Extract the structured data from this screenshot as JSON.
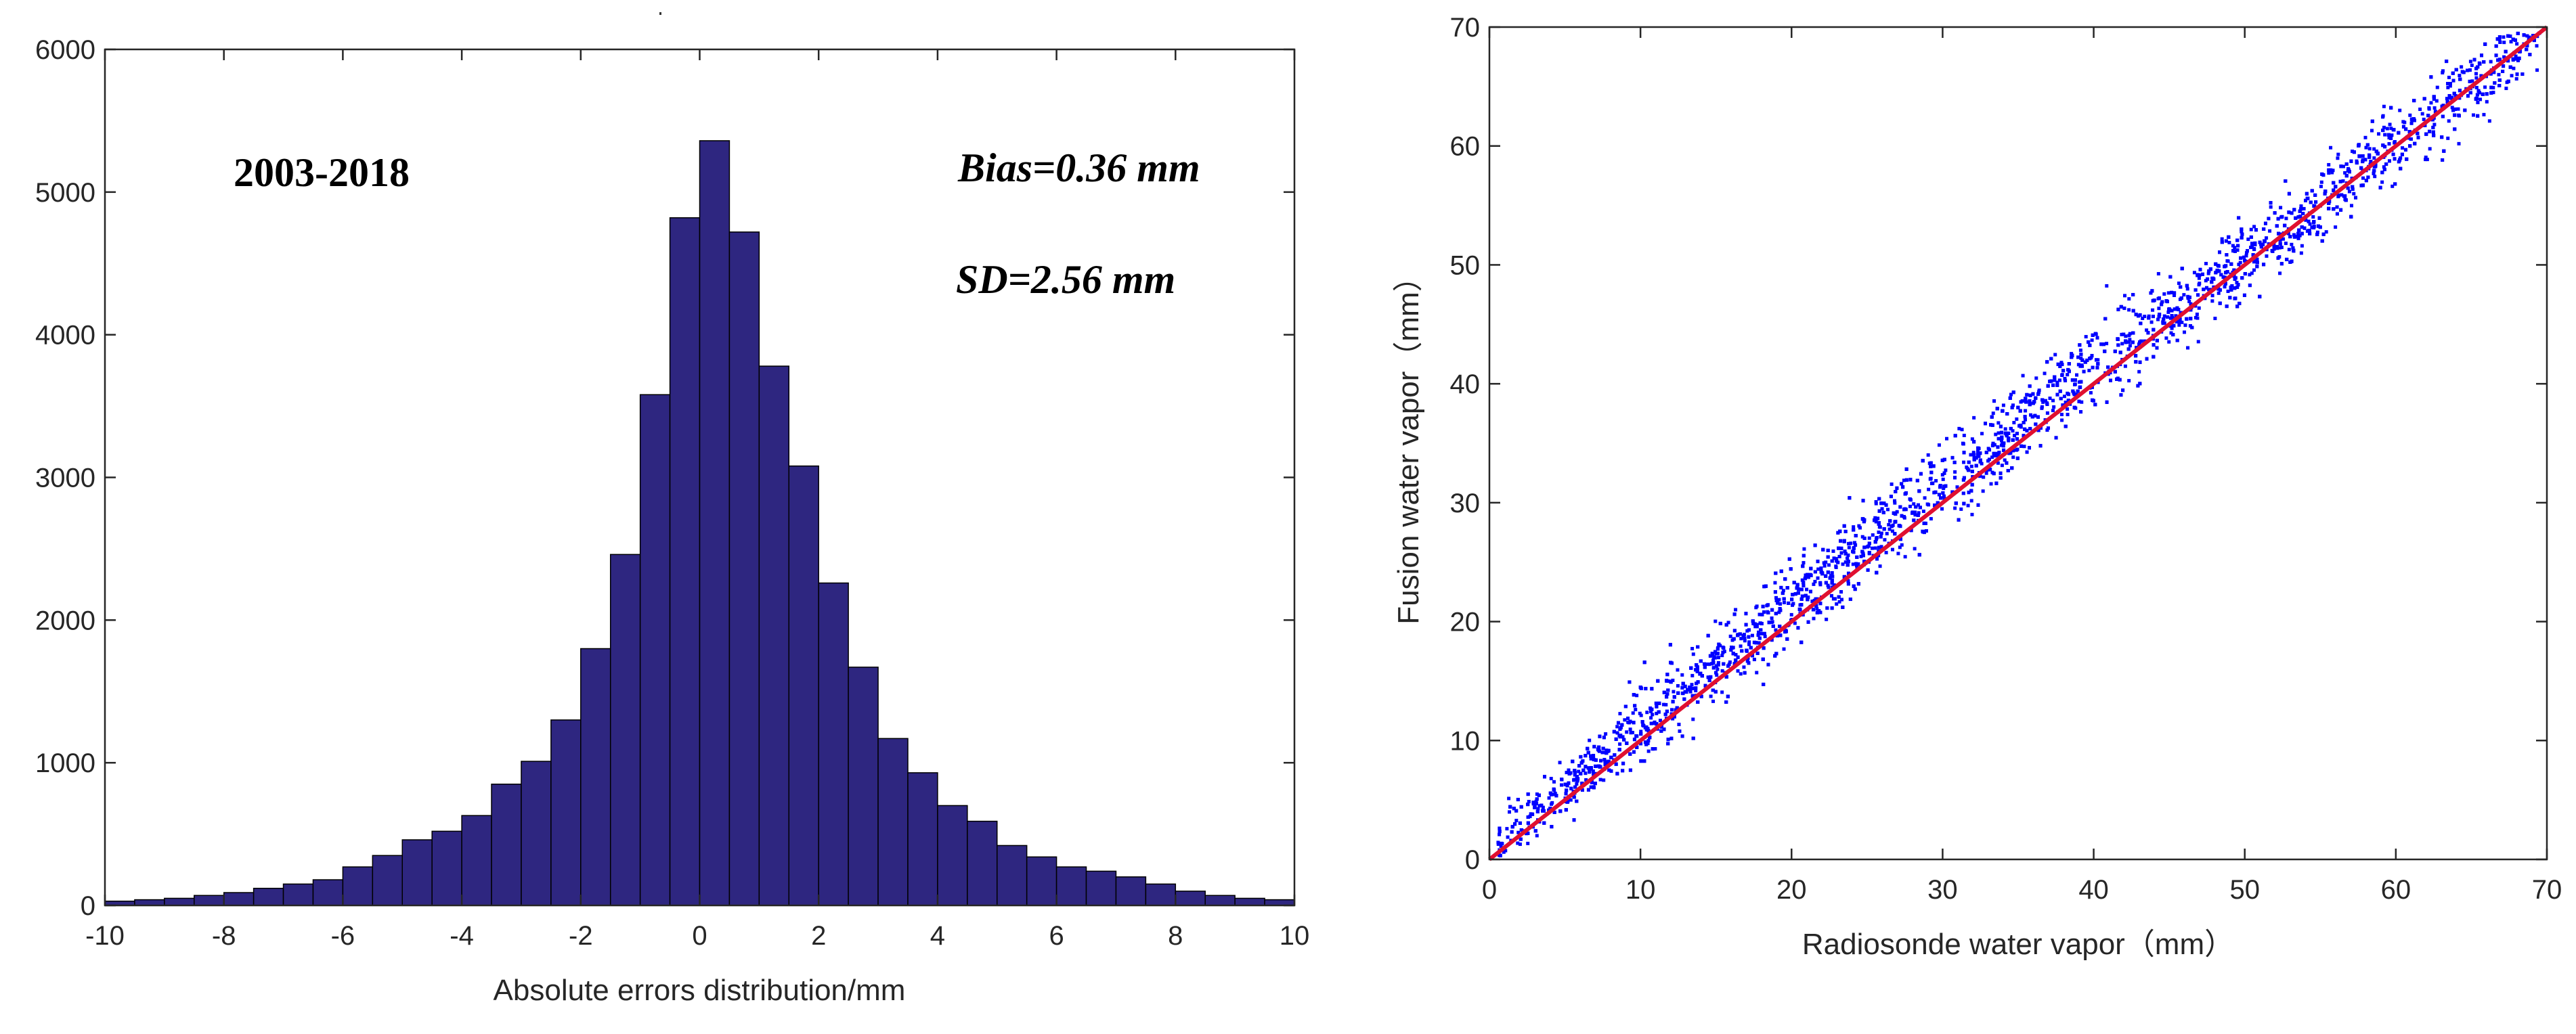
{
  "chart_data": [
    {
      "type": "bar",
      "subtype": "histogram",
      "title": "",
      "xlabel": "Absolute errors distribution/mm",
      "ylabel": "",
      "xlim": [
        -10,
        10
      ],
      "ylim": [
        0,
        6000
      ],
      "xticks": [
        "-10",
        "-8",
        "-6",
        "-4",
        "-2",
        "0",
        "2",
        "4",
        "6",
        "8",
        "10"
      ],
      "yticks": [
        "0",
        "1000",
        "2000",
        "3000",
        "4000",
        "5000",
        "6000"
      ],
      "bin_width": 0.5,
      "bin_starts": [
        -10,
        -9.5,
        -9,
        -8.5,
        -8,
        -7.5,
        -7,
        -6.5,
        -6,
        -5.5,
        -5,
        -4.5,
        -4,
        -3.5,
        -3,
        -2.5,
        -2,
        -1.5,
        -1,
        -0.5,
        0,
        0.5,
        1,
        1.5,
        2,
        2.5,
        3,
        3.5,
        4,
        4.5,
        5,
        5.5,
        6,
        6.5,
        7,
        7.5,
        8,
        8.5,
        9,
        9.5
      ],
      "values": [
        30,
        40,
        50,
        70,
        90,
        120,
        150,
        180,
        270,
        350,
        460,
        520,
        630,
        850,
        1010,
        1300,
        1800,
        2460,
        3580,
        4820,
        5360,
        4720,
        3780,
        3080,
        2260,
        1670,
        1170,
        930,
        700,
        590,
        420,
        340,
        270,
        240,
        200,
        150,
        100,
        70,
        50,
        40
      ],
      "bar_color": "#2e2680",
      "annotations": {
        "period": "2003-2018",
        "bias": "Bias=0.36 mm",
        "sd": "SD=2.56 mm"
      }
    },
    {
      "type": "scatter",
      "title": "",
      "xlabel": "Radiosonde water vapor（mm）",
      "ylabel": "Fusion water vapor（mm）",
      "xlim": [
        0,
        70
      ],
      "ylim": [
        0,
        70
      ],
      "xticks": [
        "0",
        "10",
        "20",
        "30",
        "40",
        "50",
        "60",
        "70"
      ],
      "yticks": [
        "0",
        "10",
        "20",
        "30",
        "40",
        "50",
        "60",
        "70"
      ],
      "point_color": "#0000ff",
      "reference_line": {
        "label": "1:1 line",
        "color": "#e01030",
        "from": [
          0,
          0
        ],
        "to": [
          70,
          70
        ]
      },
      "distribution": {
        "description_ranges": [
          {
            "x_range": [
              0,
              10
            ],
            "y_spread": [
              -6,
              7
            ]
          },
          {
            "x_range": [
              10,
              40
            ],
            "y_spread": [
              -8,
              11
            ]
          },
          {
            "x_range": [
              40,
              70
            ],
            "y_spread": [
              -8,
              8
            ]
          }
        ],
        "x_extent": [
          0.5,
          69.5
        ],
        "approx_points": 5000
      }
    }
  ]
}
